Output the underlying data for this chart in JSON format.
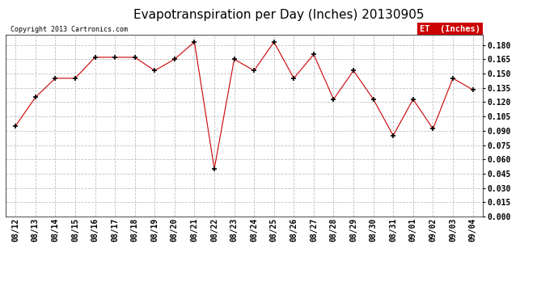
{
  "title": "Evapotranspiration per Day (Inches) 20130905",
  "copyright": "Copyright 2013 Cartronics.com",
  "legend_label": "ET  (Inches)",
  "legend_bg": "#cc0000",
  "legend_text_color": "#ffffff",
  "line_color": "#cc0000",
  "marker": "+",
  "marker_color": "#000000",
  "grid_color": "#c0c0c0",
  "bg_color": "#ffffff",
  "x_labels": [
    "08/12",
    "08/13",
    "08/14",
    "08/15",
    "08/16",
    "08/17",
    "08/18",
    "08/19",
    "08/20",
    "08/21",
    "08/22",
    "08/23",
    "08/24",
    "08/25",
    "08/26",
    "08/27",
    "08/28",
    "08/29",
    "08/30",
    "08/31",
    "09/01",
    "09/02",
    "09/03",
    "09/04"
  ],
  "y_values": [
    0.095,
    0.125,
    0.145,
    0.145,
    0.167,
    0.167,
    0.167,
    0.153,
    0.165,
    0.183,
    0.05,
    0.165,
    0.153,
    0.183,
    0.145,
    0.17,
    0.123,
    0.153,
    0.123,
    0.085,
    0.123,
    0.092,
    0.145,
    0.133
  ],
  "ylim": [
    0.0,
    0.1905
  ],
  "yticks": [
    0.0,
    0.015,
    0.03,
    0.045,
    0.06,
    0.075,
    0.09,
    0.105,
    0.12,
    0.135,
    0.15,
    0.165,
    0.18
  ],
  "title_fontsize": 11,
  "copyright_fontsize": 6,
  "tick_fontsize": 7,
  "legend_fontsize": 7.5
}
